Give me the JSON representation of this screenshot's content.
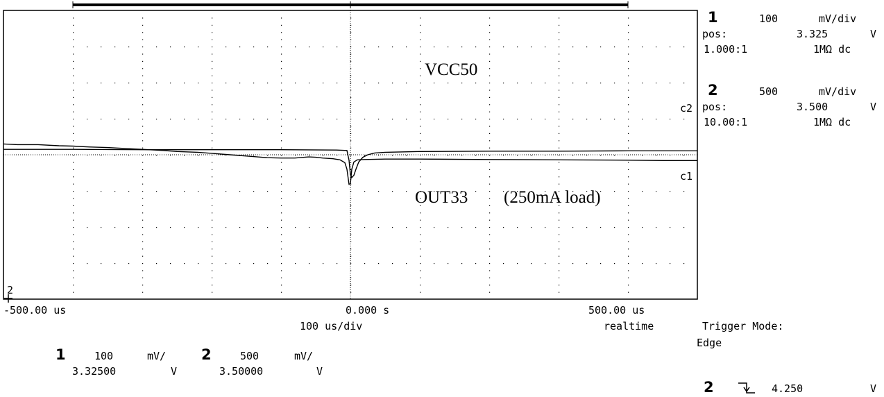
{
  "chart_data": {
    "type": "line",
    "x_unit": "us",
    "x_range": [
      -500,
      500
    ],
    "x_divisions": 10,
    "y_divisions": 8,
    "grid": true,
    "x_tick_labels": [
      "-500.00 us",
      "0.000  s",
      "500.00 us"
    ],
    "timebase_label": "100  us/div",
    "acq_mode": "realtime",
    "series": [
      {
        "name": "VCC50",
        "marker": "c2",
        "points": [
          [
            -500,
            3.65
          ],
          [
            -480,
            3.64
          ],
          [
            -450,
            3.64
          ],
          [
            -420,
            3.625
          ],
          [
            -400,
            3.62
          ],
          [
            -380,
            3.61
          ],
          [
            -350,
            3.6
          ],
          [
            -320,
            3.585
          ],
          [
            -300,
            3.575
          ],
          [
            -270,
            3.56
          ],
          [
            -250,
            3.545
          ],
          [
            -220,
            3.535
          ],
          [
            -200,
            3.52
          ],
          [
            -180,
            3.505
          ],
          [
            -160,
            3.49
          ],
          [
            -140,
            3.475
          ],
          [
            -120,
            3.46
          ],
          [
            -100,
            3.455
          ],
          [
            -80,
            3.455
          ],
          [
            -60,
            3.47
          ],
          [
            -50,
            3.465
          ],
          [
            -40,
            3.455
          ],
          [
            -25,
            3.445
          ],
          [
            -15,
            3.43
          ],
          [
            -8,
            3.39
          ],
          [
            -5,
            3.3
          ],
          [
            -2,
            3.09
          ],
          [
            0,
            3.1
          ],
          [
            2,
            3.3
          ],
          [
            5,
            3.4
          ],
          [
            10,
            3.43
          ],
          [
            20,
            3.435
          ],
          [
            50,
            3.44
          ],
          [
            100,
            3.44
          ],
          [
            200,
            3.435
          ],
          [
            300,
            3.43
          ],
          [
            400,
            3.425
          ],
          [
            450,
            3.42
          ],
          [
            500,
            3.42
          ]
        ]
      },
      {
        "name": "OUT33",
        "annotation": "(250mA load)",
        "marker": "c1",
        "points": [
          [
            -500,
            3.34
          ],
          [
            -400,
            3.34
          ],
          [
            -300,
            3.339
          ],
          [
            -200,
            3.339
          ],
          [
            -100,
            3.339
          ],
          [
            -20,
            3.338
          ],
          [
            -5,
            3.337
          ],
          [
            -2,
            3.31
          ],
          [
            0,
            3.27
          ],
          [
            2,
            3.262
          ],
          [
            5,
            3.268
          ],
          [
            8,
            3.285
          ],
          [
            12,
            3.305
          ],
          [
            18,
            3.318
          ],
          [
            25,
            3.325
          ],
          [
            35,
            3.33
          ],
          [
            50,
            3.332
          ],
          [
            100,
            3.334
          ],
          [
            200,
            3.335
          ],
          [
            300,
            3.335
          ],
          [
            400,
            3.336
          ],
          [
            500,
            3.336
          ]
        ]
      }
    ],
    "channels": [
      {
        "id": "1",
        "scale": "100",
        "unit": "mV/div",
        "pos_label": "pos:",
        "pos": "3.325",
        "pos_unit": "V",
        "probe": "1.000:1",
        "coupling": "1MΩ dc",
        "ref_volts_per_div": 0.1,
        "ref_center": 3.325,
        "marker": "c1"
      },
      {
        "id": "2",
        "scale": "500",
        "unit": "mV/div",
        "pos_label": "pos:",
        "pos": "3.500",
        "pos_unit": "V",
        "probe": "10.00:1",
        "coupling": "1MΩ dc",
        "ref_volts_per_div": 0.5,
        "ref_center": 3.5,
        "marker": "c2"
      }
    ],
    "bottom_readout": [
      {
        "id": "1",
        "scale": "100",
        "unit": "mV/",
        "offset": "3.32500",
        "offset_unit": "V"
      },
      {
        "id": "2",
        "scale": "500",
        "unit": "mV/",
        "offset": "3.50000",
        "offset_unit": "V"
      }
    ],
    "trigger": {
      "mode_label": "Trigger Mode:",
      "mode": "Edge",
      "source": "2",
      "level": "4.250",
      "level_unit": "V",
      "slope": "falling"
    },
    "ground_marker": "2"
  }
}
